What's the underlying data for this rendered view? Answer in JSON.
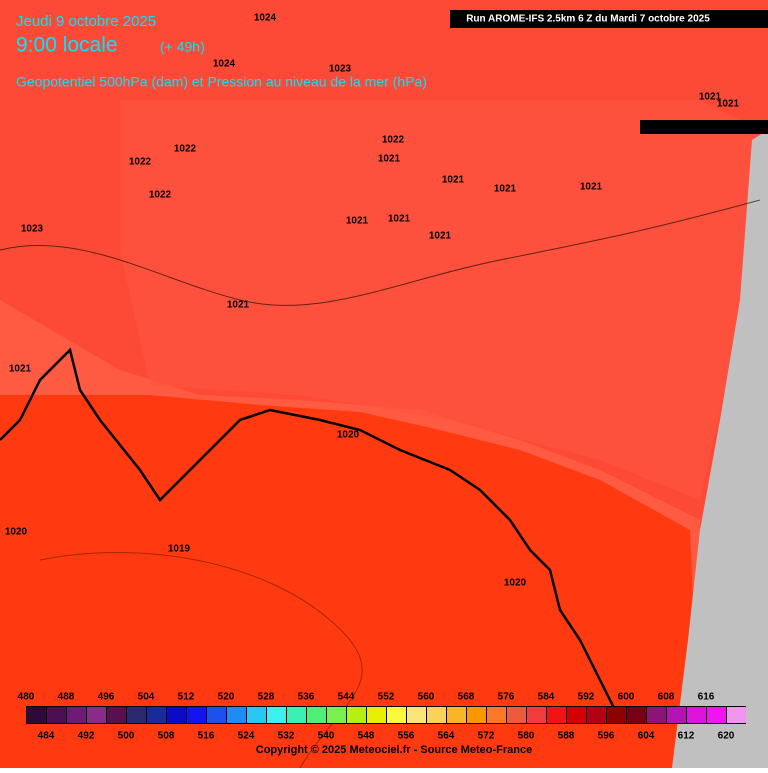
{
  "header": {
    "date": "Jeudi 9 octobre 2025",
    "time": "9:00 locale",
    "lead": "(+ 49h)",
    "title": "Geopotentiel 500hPa (dam) et Pression au niveau de la mer (hPa)",
    "run": "Run AROME-IFS 2.5km 6 Z du Mardi 7 octobre 2025"
  },
  "isobar_labels": [
    "1024",
    "1024",
    "1023",
    "1021",
    "1021",
    "1022",
    "1022",
    "1022",
    "1021",
    "1021",
    "1021",
    "1021",
    "1022",
    "1021",
    "1021",
    "1021",
    "1023",
    "1021",
    "1021",
    "1020",
    "1020",
    "1019",
    "1020"
  ],
  "colorbar": {
    "labels": [
      480,
      484,
      488,
      492,
      496,
      500,
      504,
      508,
      512,
      516,
      520,
      524,
      528,
      532,
      536,
      540,
      544,
      548,
      552,
      556,
      560,
      564,
      568,
      572,
      576,
      580,
      584,
      588,
      592,
      596,
      600,
      604,
      608,
      612,
      616,
      620
    ],
    "colors": [
      "#2d0a3a",
      "#4b0f55",
      "#6e1a78",
      "#8a2a8a",
      "#5a1050",
      "#2a2a70",
      "#1a2a9a",
      "#0a0ac8",
      "#1414f0",
      "#1e50f0",
      "#1e8cf0",
      "#28c8f0",
      "#3cf0f0",
      "#3cf0b4",
      "#50f078",
      "#78f050",
      "#b4f014",
      "#e6f000",
      "#fafa3c",
      "#fae678",
      "#fad25a",
      "#fab428",
      "#fa9600",
      "#fa7828",
      "#f05a3c",
      "#f03c3c",
      "#f01414",
      "#d20000",
      "#b40014",
      "#8c0000",
      "#780014",
      "#8c1478",
      "#b414b4",
      "#dc14dc",
      "#f014f0",
      "#f096f0"
    ]
  },
  "footer": "Copyright © 2025 Meteociel.fr - Source Meteo-France"
}
